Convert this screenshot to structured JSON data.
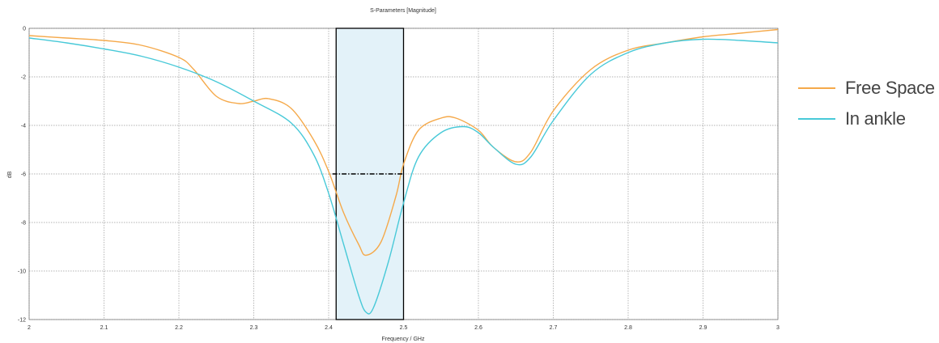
{
  "chart_data": {
    "type": "line",
    "title": "S-Parameters [Magnitude]",
    "xlabel": "Frequency / GHz",
    "ylabel": "dB",
    "xlim": [
      2,
      3
    ],
    "ylim": [
      -12,
      0
    ],
    "xticks": [
      2,
      2.1,
      2.2,
      2.3,
      2.4,
      2.5,
      2.6,
      2.7,
      2.8,
      2.9,
      3
    ],
    "xtick_labels": [
      "2",
      "2.1",
      "2.2",
      "2.3",
      "2.4",
      "2.5",
      "2.6",
      "2.7",
      "2.8",
      "2.9",
      "3"
    ],
    "yticks": [
      0,
      -2,
      -4,
      -6,
      -8,
      -10,
      -12
    ],
    "ytick_labels": [
      "0",
      "-2",
      "-4",
      "-6",
      "-8",
      "-10",
      "-12"
    ],
    "grid": true,
    "legend_position": "right",
    "series": [
      {
        "name": "Free Space",
        "color": "#F5A94A",
        "x": [
          2.0,
          2.05,
          2.1,
          2.15,
          2.2,
          2.22,
          2.25,
          2.28,
          2.3,
          2.32,
          2.35,
          2.38,
          2.4,
          2.42,
          2.44,
          2.45,
          2.47,
          2.49,
          2.5,
          2.52,
          2.55,
          2.57,
          2.6,
          2.62,
          2.65,
          2.67,
          2.7,
          2.75,
          2.8,
          2.85,
          2.9,
          2.95,
          3.0
        ],
        "y": [
          -0.3,
          -0.4,
          -0.5,
          -0.7,
          -1.2,
          -1.7,
          -2.8,
          -3.1,
          -3.0,
          -2.9,
          -3.3,
          -4.6,
          -5.9,
          -7.6,
          -8.9,
          -9.35,
          -8.8,
          -6.9,
          -5.6,
          -4.2,
          -3.7,
          -3.7,
          -4.2,
          -4.9,
          -5.5,
          -5.1,
          -3.4,
          -1.7,
          -0.9,
          -0.6,
          -0.35,
          -0.2,
          -0.05
        ]
      },
      {
        "name": "In ankle",
        "color": "#48C9D8",
        "x": [
          2.0,
          2.05,
          2.1,
          2.15,
          2.2,
          2.25,
          2.3,
          2.35,
          2.38,
          2.4,
          2.42,
          2.44,
          2.45,
          2.46,
          2.48,
          2.5,
          2.52,
          2.55,
          2.58,
          2.6,
          2.62,
          2.65,
          2.67,
          2.7,
          2.75,
          2.8,
          2.85,
          2.9,
          2.95,
          3.0
        ],
        "y": [
          -0.4,
          -0.6,
          -0.85,
          -1.15,
          -1.6,
          -2.2,
          -3.0,
          -3.9,
          -5.2,
          -6.8,
          -8.9,
          -11.0,
          -11.7,
          -11.5,
          -9.6,
          -7.2,
          -5.3,
          -4.3,
          -4.05,
          -4.3,
          -4.9,
          -5.6,
          -5.3,
          -3.8,
          -1.9,
          -1.0,
          -0.6,
          -0.45,
          -0.5,
          -0.6
        ]
      }
    ],
    "highlight_band": {
      "x": [
        2.41,
        2.5
      ],
      "y": [
        -12,
        0
      ],
      "fill": "#E3F2F9",
      "stroke": "#000000"
    },
    "threshold_line": {
      "y": -6,
      "x": [
        2.405,
        2.5
      ],
      "color": "#000000",
      "style": "dash-dot"
    }
  }
}
